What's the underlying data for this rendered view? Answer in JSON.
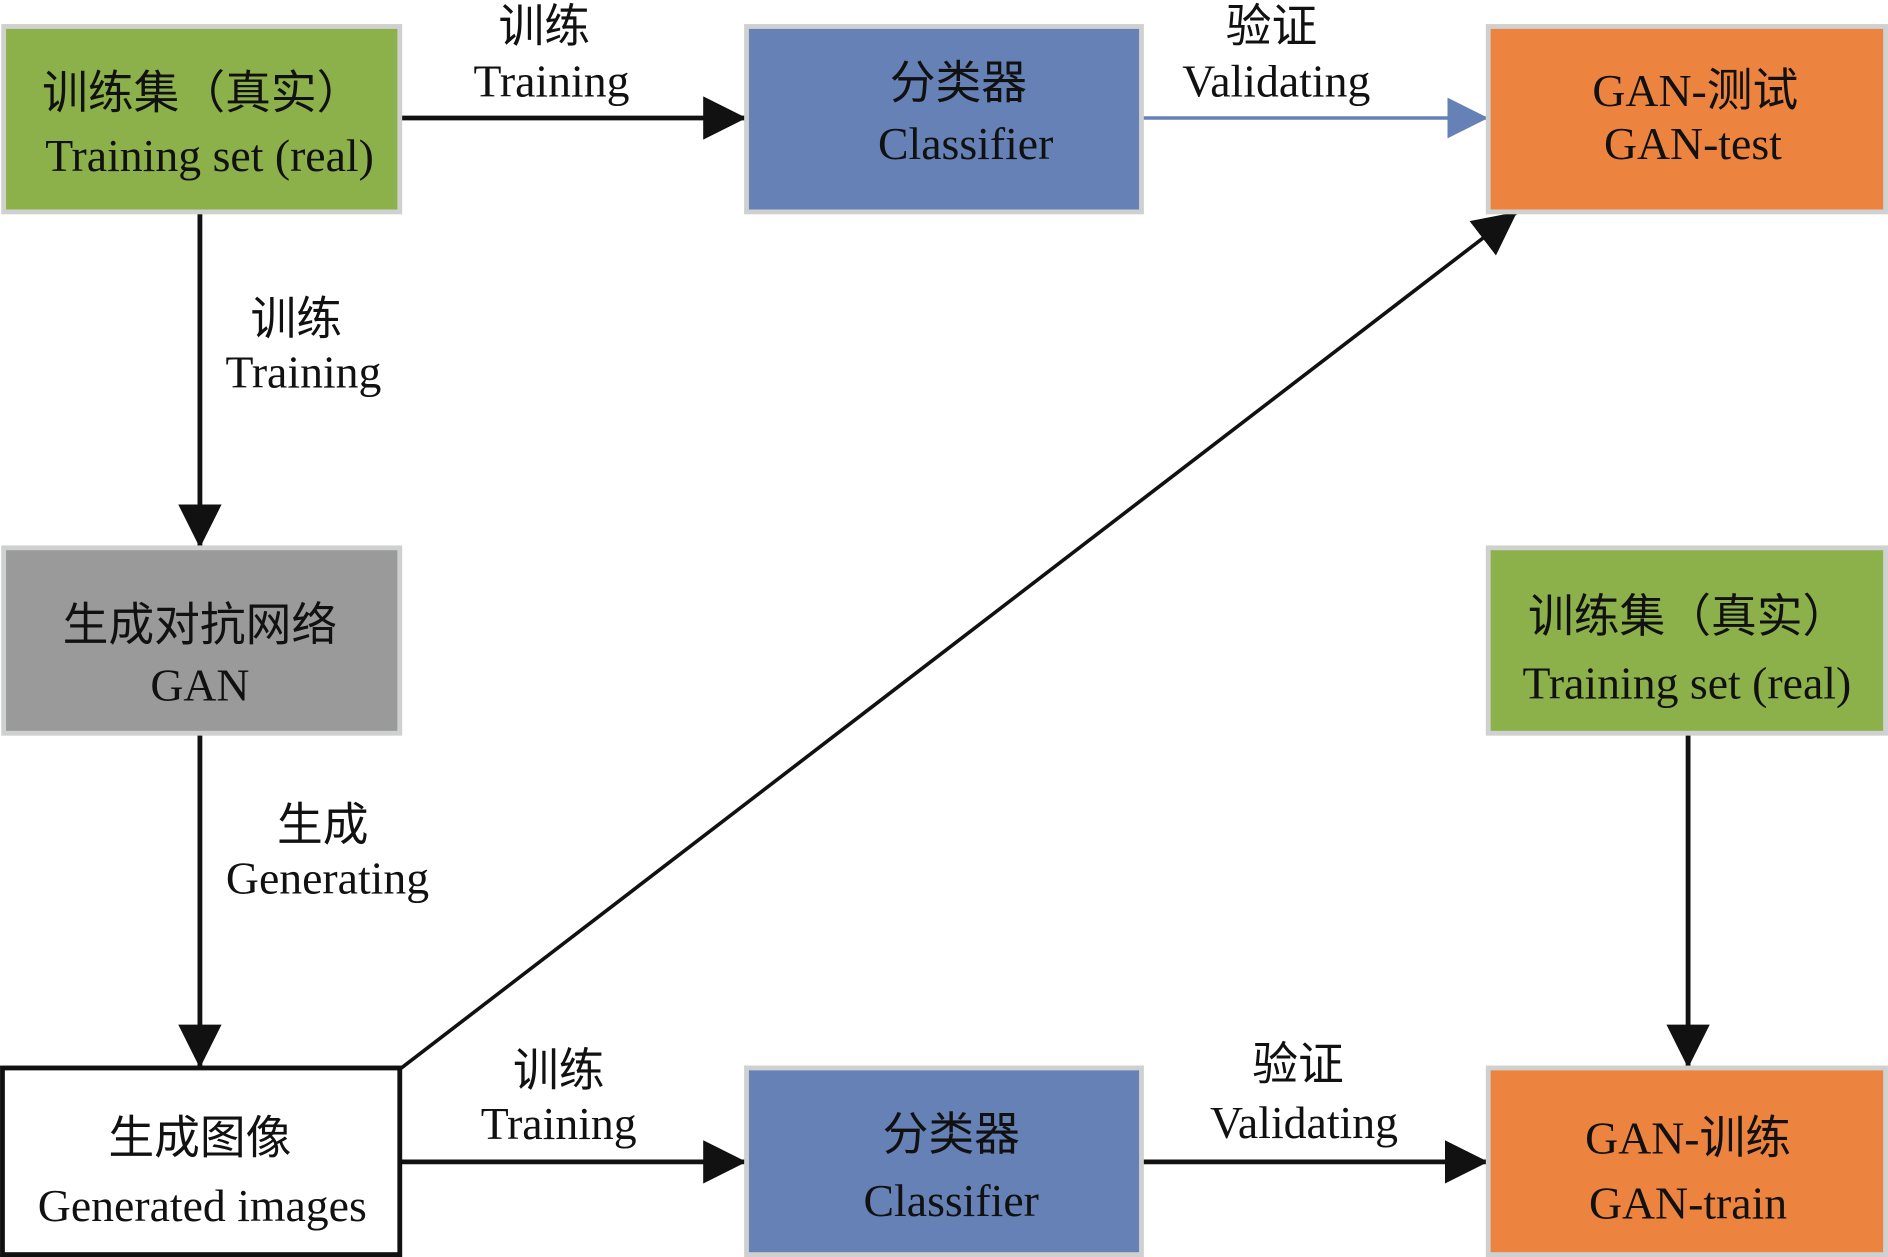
{
  "colors": {
    "green": "#8db14a",
    "blue": "#6681b5",
    "orange": "#ec843f",
    "gray": "#9a9a9a",
    "border": "#cfd0d0",
    "blue_arrow": "#6681b5"
  },
  "nodes": {
    "train_real_top": {
      "zh": "训练集（真实）",
      "en": "Training set (real)"
    },
    "classifier_top": {
      "zh": "分类器",
      "en": "Classifier"
    },
    "gan_test": {
      "zh": "GAN-测试",
      "en": "GAN-test"
    },
    "gan": {
      "zh": "生成对抗网络",
      "en": "GAN"
    },
    "train_real_right": {
      "zh": "训练集（真实）",
      "en": "Training set (real)"
    },
    "generated": {
      "zh": "生成图像",
      "en": "Generated images"
    },
    "classifier_bottom": {
      "zh": "分类器",
      "en": "Classifier"
    },
    "gan_train": {
      "zh": "GAN-训练",
      "en": "GAN-train"
    }
  },
  "edges": {
    "train_top": {
      "zh": "训练",
      "en": "Training"
    },
    "validate_top": {
      "zh": "验证",
      "en": "Validating"
    },
    "train_gan": {
      "zh": "训练",
      "en": "Training"
    },
    "generate": {
      "zh": "生成",
      "en": "Generating"
    },
    "train_bottom": {
      "zh": "训练",
      "en": "Training"
    },
    "validate_bottom": {
      "zh": "验证",
      "en": "Validating"
    }
  }
}
